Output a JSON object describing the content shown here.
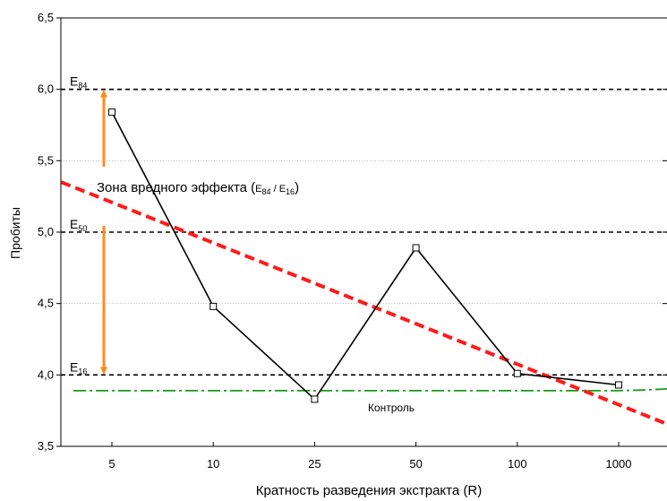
{
  "chart_data": {
    "type": "line",
    "xlabel": "Кратность разведения экстракта (R)",
    "ylabel": "Пробиты",
    "categories": [
      "5",
      "10",
      "25",
      "50",
      "100",
      "1000"
    ],
    "ylim": [
      3.5,
      6.5
    ],
    "yticks": [
      "3,5",
      "4,0",
      "4,5",
      "5,0",
      "5,5",
      "6,0",
      "6,5"
    ],
    "ytick_values": [
      3.5,
      4.0,
      4.5,
      5.0,
      5.5,
      6.0,
      6.5
    ],
    "grid": true,
    "series": [
      {
        "values": [
          5.84,
          4.48,
          3.83,
          4.89,
          4.01,
          3.93
        ],
        "color": "#000000"
      }
    ],
    "trend": {
      "from": [
        -0.5,
        5.35
      ],
      "to": [
        5.5,
        3.65
      ],
      "color": "#ff1a1a"
    },
    "control": {
      "label": "Контроль",
      "value": 3.89,
      "color": "#1a9a1a"
    },
    "reference_lines": [
      {
        "main": "E",
        "sub": "84",
        "value": 6.0
      },
      {
        "main": "E",
        "sub": "50",
        "value": 5.0
      },
      {
        "main": "E",
        "sub": "16",
        "value": 4.0
      }
    ],
    "zone": {
      "label": "Зона вредного эффекта",
      "ratio_main1": "E",
      "ratio_sub1": "84",
      "ratio_sep": " / ",
      "ratio_main2": "E",
      "ratio_sub2": "16",
      "from": 4.0,
      "to": 6.0,
      "color": "#ff8c1a"
    }
  }
}
